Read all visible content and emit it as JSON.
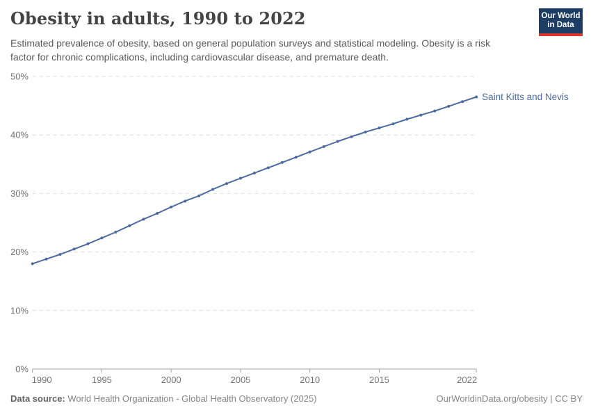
{
  "header": {
    "title": "Obesity in adults, 1990 to 2022",
    "subtitle": "Estimated prevalence of obesity, based on general population surveys and statistical modeling. Obesity is a risk factor for chronic complications, including cardiovascular disease, and premature death.",
    "logo": {
      "line1": "Our World",
      "line2": "in Data"
    }
  },
  "chart_data": {
    "type": "line",
    "title": "Obesity in adults, 1990 to 2022",
    "xlabel": "",
    "ylabel": "",
    "xlim": [
      1990,
      2022
    ],
    "ylim": [
      0,
      50
    ],
    "grid": "horizontal-dashed",
    "legend_position": "end-of-line-label",
    "x": [
      1990,
      1991,
      1992,
      1993,
      1994,
      1995,
      1996,
      1997,
      1998,
      1999,
      2000,
      2001,
      2002,
      2003,
      2004,
      2005,
      2006,
      2007,
      2008,
      2009,
      2010,
      2011,
      2012,
      2013,
      2014,
      2015,
      2016,
      2017,
      2018,
      2019,
      2020,
      2021,
      2022
    ],
    "series": [
      {
        "name": "Saint Kitts and Nevis",
        "values": [
          18.0,
          18.8,
          19.6,
          20.5,
          21.4,
          22.4,
          23.4,
          24.5,
          25.6,
          26.6,
          27.7,
          28.7,
          29.6,
          30.7,
          31.7,
          32.6,
          33.5,
          34.4,
          35.3,
          36.2,
          37.1,
          38.0,
          38.9,
          39.7,
          40.5,
          41.2,
          41.9,
          42.7,
          43.4,
          44.1,
          44.9,
          45.7,
          46.5
        ]
      }
    ],
    "x_ticks": [
      {
        "label": "1990",
        "value": 1990
      },
      {
        "label": "1995",
        "value": 1995
      },
      {
        "label": "2000",
        "value": 2000
      },
      {
        "label": "2005",
        "value": 2005
      },
      {
        "label": "2010",
        "value": 2010
      },
      {
        "label": "2015",
        "value": 2015
      },
      {
        "label": "2022",
        "value": 2022
      }
    ],
    "y_ticks": [
      {
        "label": "0%",
        "value": 0
      },
      {
        "label": "10%",
        "value": 10
      },
      {
        "label": "20%",
        "value": 20
      },
      {
        "label": "30%",
        "value": 30
      },
      {
        "label": "40%",
        "value": 40
      },
      {
        "label": "50%",
        "value": 50
      }
    ],
    "end_label": "Saint Kitts and Nevis"
  },
  "colors": {
    "line": "#4d6a9f",
    "end_label": "#4d6a9f",
    "gridline": "#dcdcdc",
    "axis": "#a3a3a3",
    "tick_text": "#737373",
    "logo_bg": "#1d3d63",
    "logo_red": "#dc352c"
  },
  "footer": {
    "source_label": "Data source:",
    "source_text": " World Health Organization - Global Health Observatory (2025)",
    "attribution": "OurWorldinData.org/obesity | CC BY"
  }
}
